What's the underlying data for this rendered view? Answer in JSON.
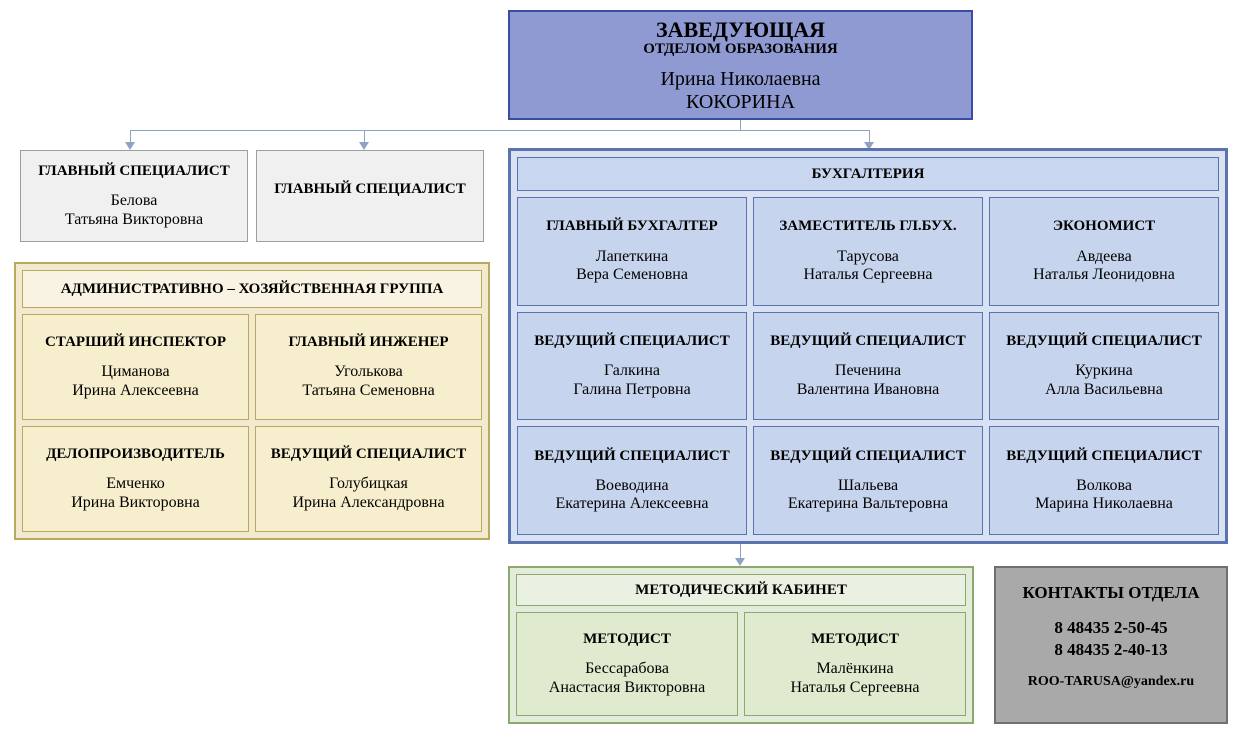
{
  "colors": {
    "head_bg": "#8f9ad2",
    "head_border": "#3a4da0",
    "left_card_bg": "#f0f0f0",
    "left_card_border": "#9aa0a6",
    "admin_group_bg": "#f2e9cf",
    "admin_title_bg": "#f8f3e2",
    "admin_border": "#b7a95e",
    "admin_card_bg": "#f7eecd",
    "acct_group_bg": "#d9e2f3",
    "acct_border": "#5b74b0",
    "acct_title_bg": "#c9d6ef",
    "acct_card_bg": "#c7d4ed",
    "method_group_bg": "#e3ecd9",
    "method_border": "#8aa86f",
    "method_title_bg": "#eaf1e2",
    "method_card_bg": "#dfeace",
    "contacts_bg": "#a9a9a9",
    "contacts_border": "#6f6f6f",
    "connector": "#8ea3c4"
  },
  "head": {
    "title1": "ЗАВЕДУЮЩАЯ",
    "title2": "ОТДЕЛОМ ОБРАЗОВАНИЯ",
    "name1": "Ирина Николаевна",
    "name2": "КОКОРИНА"
  },
  "left_specialists": [
    {
      "role": "ГЛАВНЫЙ СПЕЦИАЛИСТ",
      "name1": "Белова",
      "name2": "Татьяна Викторовна"
    },
    {
      "role": "ГЛАВНЫЙ СПЕЦИАЛИСТ",
      "name1": "",
      "name2": ""
    }
  ],
  "admin_group": {
    "title": "АДМИНИСТРАТИВНО – ХОЗЯЙСТВЕННАЯ ГРУППА",
    "cards": [
      {
        "role": "СТАРШИЙ ИНСПЕКТОР",
        "name1": "Циманова",
        "name2": "Ирина Алексеевна"
      },
      {
        "role": "ГЛАВНЫЙ ИНЖЕНЕР",
        "name1": "Уголькова",
        "name2": "Татьяна Семеновна"
      },
      {
        "role": "ДЕЛОПРОИЗВОДИТЕЛЬ",
        "name1": "Емченко",
        "name2": "Ирина Викторовна"
      },
      {
        "role": "ВЕДУЩИЙ СПЕЦИАЛИСТ",
        "name1": "Голубицкая",
        "name2": "Ирина Александровна"
      }
    ]
  },
  "acct_group": {
    "title": "БУХГАЛТЕРИЯ",
    "cards": [
      {
        "role": "ГЛАВНЫЙ БУХГАЛТЕР",
        "name1": "Лапеткина",
        "name2": "Вера Семеновна"
      },
      {
        "role": "ЗАМЕСТИТЕЛЬ ГЛ.БУХ.",
        "name1": "Тарусова",
        "name2": "Наталья Сергеевна"
      },
      {
        "role": "ЭКОНОМИСТ",
        "name1": "Авдеева",
        "name2": "Наталья Леонидовна"
      },
      {
        "role": "ВЕДУЩИЙ СПЕЦИАЛИСТ",
        "name1": "Галкина",
        "name2": "Галина Петровна"
      },
      {
        "role": "ВЕДУЩИЙ СПЕЦИАЛИСТ",
        "name1": "Печенина",
        "name2": "Валентина Ивановна"
      },
      {
        "role": "ВЕДУЩИЙ СПЕЦИАЛИСТ",
        "name1": "Куркина",
        "name2": "Алла Васильевна"
      },
      {
        "role": "ВЕДУЩИЙ СПЕЦИАЛИСТ",
        "name1": "Воеводина",
        "name2": "Екатерина Алексеевна"
      },
      {
        "role": "ВЕДУЩИЙ СПЕЦИАЛИСТ",
        "name1": "Шальева",
        "name2": "Екатерина Вальтеровна"
      },
      {
        "role": "ВЕДУЩИЙ СПЕЦИАЛИСТ",
        "name1": "Волкова",
        "name2": "Марина Николаевна"
      }
    ]
  },
  "method_group": {
    "title": "МЕТОДИЧЕСКИЙ КАБИНЕТ",
    "cards": [
      {
        "role": "МЕТОДИСТ",
        "name1": "Бессарабова",
        "name2": "Анастасия Викторовна"
      },
      {
        "role": "МЕТОДИСТ",
        "name1": "Малёнкина",
        "name2": "Наталья Сергеевна"
      }
    ]
  },
  "contacts": {
    "title": "КОНТАКТЫ ОТДЕЛА",
    "phone1": "8 48435 2-50-45",
    "phone2": "8 48435 2-40-13",
    "email": "ROO-TARUSA@yandex.ru"
  }
}
